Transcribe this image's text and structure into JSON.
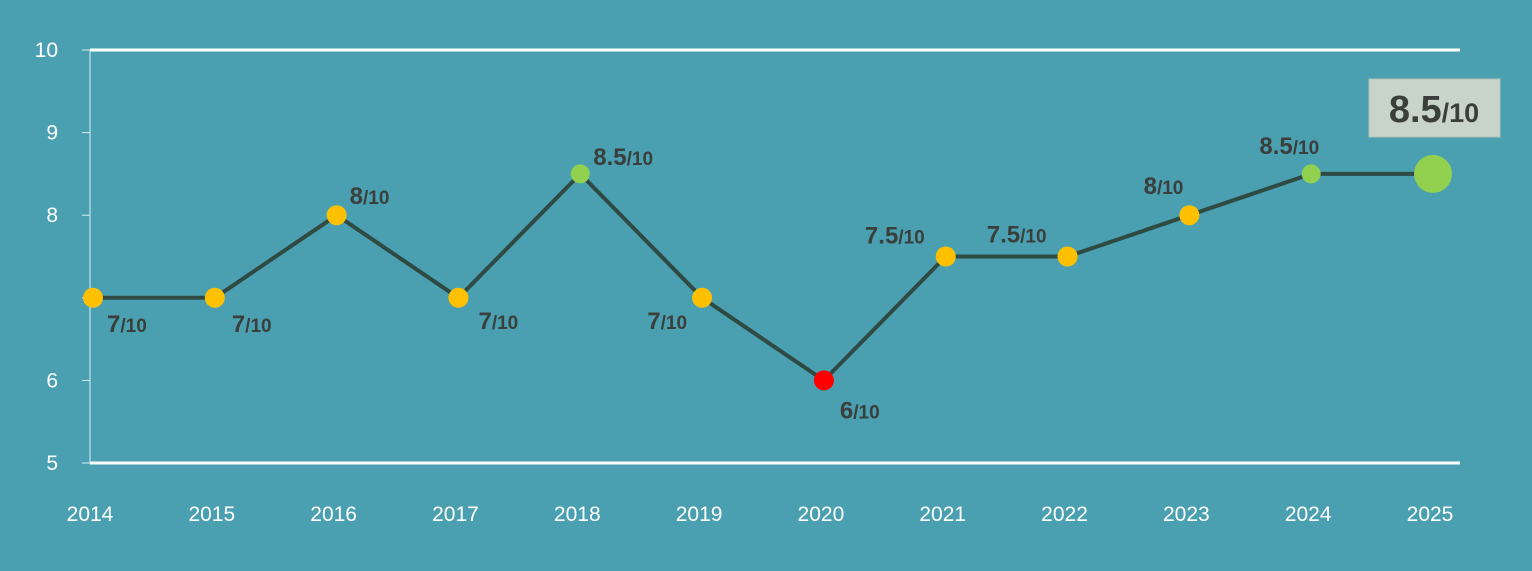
{
  "chart_data": {
    "type": "line",
    "title": "",
    "xlabel": "",
    "ylabel": "",
    "x": [
      "2014",
      "2015",
      "2016",
      "2017",
      "2018",
      "2019",
      "2020",
      "2021",
      "2022",
      "2023",
      "2024",
      "2025"
    ],
    "series": [
      {
        "values": [
          7,
          7,
          8,
          7,
          8.5,
          7,
          6,
          7.5,
          7.5,
          8,
          8.5,
          8.5
        ],
        "labels": [
          "7",
          "7",
          "8",
          "7",
          "8.5",
          "7",
          "6",
          "7.5",
          "7.5",
          "8",
          "8.5",
          "8.5"
        ],
        "label_suffix": "/10",
        "point_colors": [
          "#ffc000",
          "#ffc000",
          "#ffc000",
          "#ffc000",
          "#92d050",
          "#ffc000",
          "#ff0000",
          "#ffc000",
          "#ffc000",
          "#ffc000",
          "#92d050",
          "#92d050"
        ]
      }
    ],
    "ylim": [
      5,
      10
    ],
    "y_ticks": [
      "5",
      "6",
      "8",
      "9",
      "10"
    ],
    "grid": false,
    "colors": {
      "background": "#4aa0b1",
      "line": "#2f4a43",
      "axis": "#ffffff",
      "text": "#3a3f3b",
      "highlight_box": "#c8d4c9"
    }
  }
}
